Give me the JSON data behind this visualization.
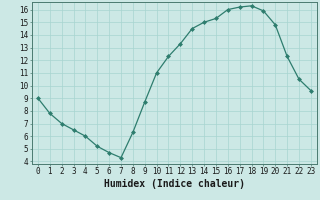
{
  "x": [
    0,
    1,
    2,
    3,
    4,
    5,
    6,
    7,
    8,
    9,
    10,
    11,
    12,
    13,
    14,
    15,
    16,
    17,
    18,
    19,
    20,
    21,
    22,
    23
  ],
  "y": [
    9.0,
    7.8,
    7.0,
    6.5,
    6.0,
    5.2,
    4.7,
    4.3,
    6.3,
    8.7,
    11.0,
    12.3,
    13.3,
    14.5,
    15.0,
    15.3,
    16.0,
    16.2,
    16.3,
    15.9,
    14.8,
    12.3,
    10.5,
    9.6
  ],
  "line_color": "#2e7d6e",
  "marker": "D",
  "marker_size": 2.0,
  "bg_color": "#cce8e5",
  "grid_color": "#a8d5d0",
  "xlabel": "Humidex (Indice chaleur)",
  "xlim": [
    -0.5,
    23.5
  ],
  "ylim": [
    3.8,
    16.6
  ],
  "yticks": [
    4,
    5,
    6,
    7,
    8,
    9,
    10,
    11,
    12,
    13,
    14,
    15,
    16
  ],
  "xticks": [
    0,
    1,
    2,
    3,
    4,
    5,
    6,
    7,
    8,
    9,
    10,
    11,
    12,
    13,
    14,
    15,
    16,
    17,
    18,
    19,
    20,
    21,
    22,
    23
  ],
  "tick_label_fontsize": 5.5,
  "xlabel_fontsize": 7.0,
  "linewidth": 0.9
}
